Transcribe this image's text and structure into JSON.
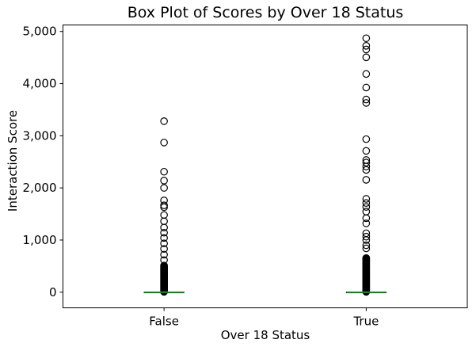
{
  "figure": {
    "title": "Box Plot of Scores by Over 18 Status",
    "xlabel": "Over 18 Status",
    "ylabel": "Interaction Score"
  },
  "colors": {
    "background": "#ffffff",
    "axes_and_points": "#000000",
    "median_line": "#2ca02c",
    "text": "#000000"
  },
  "chart_data": {
    "type": "box",
    "title": "Box Plot of Scores by Over 18 Status",
    "xlabel": "Over 18 Status",
    "ylabel": "Interaction Score",
    "categories": [
      "False",
      "True"
    ],
    "ylim": [
      -300,
      5125
    ],
    "grid": false,
    "legend": "none",
    "yticks": [
      {
        "value": 0,
        "label": "0"
      },
      {
        "value": 1000,
        "label": "1,000"
      },
      {
        "value": 2000,
        "label": "2,000"
      },
      {
        "value": 3000,
        "label": "3,000"
      },
      {
        "value": 4000,
        "label": "4,000"
      },
      {
        "value": 5000,
        "label": "5,000"
      }
    ],
    "series": [
      {
        "name": "False",
        "median": 0,
        "q1": 0,
        "q3": 3,
        "whisker_low": 0,
        "whisker_high": 8,
        "outliers": [
          3280,
          2870,
          2310,
          2140,
          2000,
          1760,
          1665,
          1630,
          1480,
          1360,
          1240,
          1140,
          1040,
          935,
          830,
          720,
          615,
          510,
          498,
          486,
          474,
          462,
          450,
          438,
          426,
          414,
          402,
          390,
          378,
          366,
          354,
          342,
          330,
          318,
          306,
          294,
          282,
          270,
          258,
          246,
          234,
          222,
          210,
          198,
          186,
          174,
          162,
          150,
          138,
          126,
          114,
          102,
          90,
          78,
          66,
          54,
          42,
          30,
          18,
          6
        ]
      },
      {
        "name": "True",
        "median": 0,
        "q1": 0,
        "q3": 3,
        "whisker_low": 0,
        "whisker_high": 8,
        "outliers": [
          4870,
          4725,
          4655,
          4505,
          4185,
          3925,
          3695,
          3630,
          2935,
          2710,
          2535,
          2485,
          2410,
          2345,
          2155,
          1790,
          1710,
          1635,
          1545,
          1420,
          1320,
          1130,
          1065,
          1000,
          900,
          840,
          655,
          643,
          631,
          619,
          607,
          595,
          583,
          571,
          559,
          547,
          535,
          523,
          511,
          499,
          487,
          475,
          463,
          451,
          439,
          427,
          415,
          403,
          391,
          379,
          367,
          355,
          343,
          331,
          319,
          307,
          295,
          283,
          271,
          259,
          247,
          235,
          223,
          211,
          199,
          187,
          175,
          163,
          151,
          139,
          127,
          115,
          103,
          91,
          79,
          67,
          55,
          43,
          31,
          19,
          7
        ]
      }
    ]
  }
}
